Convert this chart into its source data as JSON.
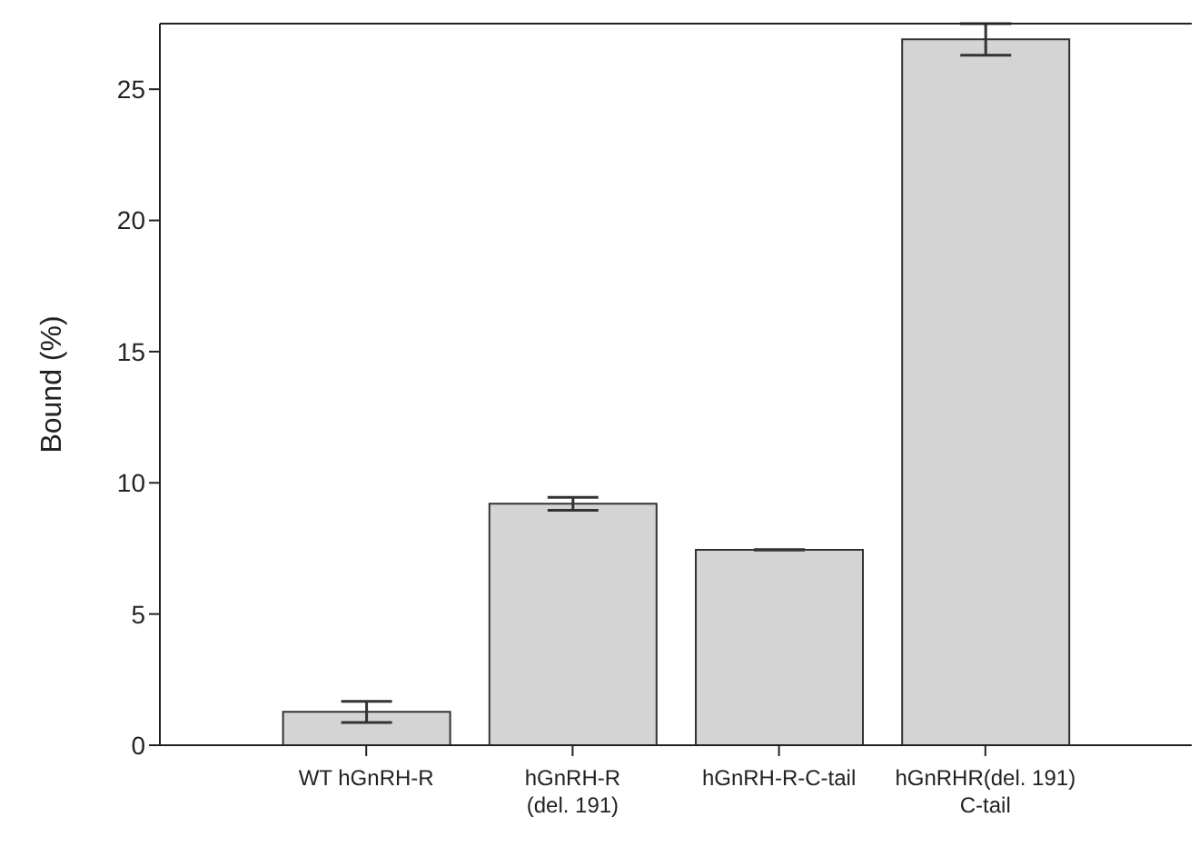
{
  "chart_data": {
    "type": "bar",
    "ylabel": "Bound (%)",
    "categories": [
      "WT hGnRH-R",
      "hGnRH-R\n(del. 191)",
      "hGnRH-R-C-tail",
      "hGnRHR(del. 191)\nC-tail"
    ],
    "values": [
      1.27,
      9.2,
      7.45,
      26.9
    ],
    "errors": [
      0.4,
      0.25,
      null,
      0.6
    ],
    "color": "#d4d4d4",
    "ylim": [
      0,
      27.5
    ],
    "yticks": [
      0,
      5,
      10,
      15,
      20,
      25
    ],
    "grid": false
  }
}
